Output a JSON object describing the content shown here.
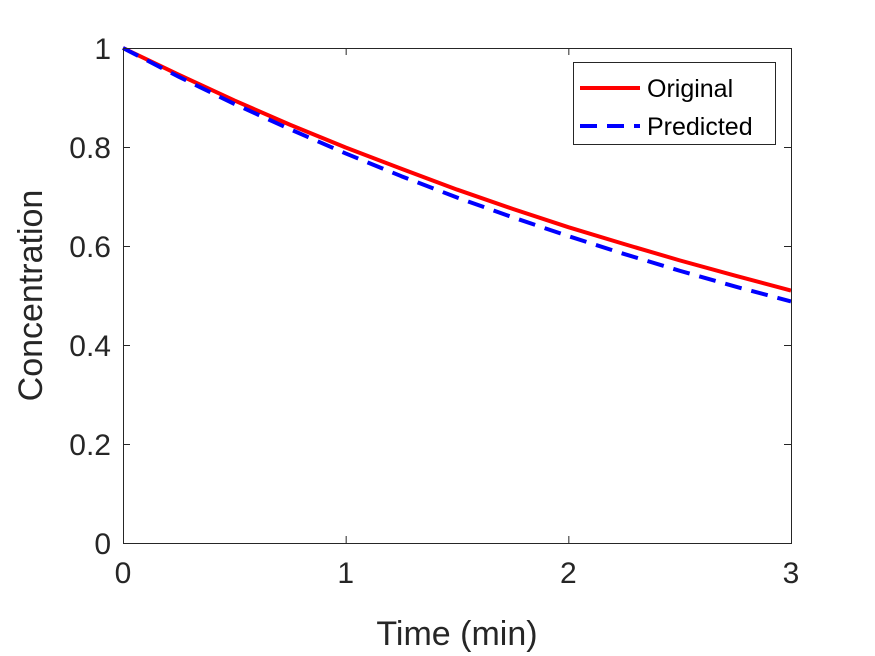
{
  "chart_data": {
    "type": "line",
    "title": "",
    "xlabel": "Time (min)",
    "ylabel": "Concentration",
    "xlim": [
      0,
      3
    ],
    "ylim": [
      0,
      1
    ],
    "xticks": [
      0,
      1,
      2,
      3
    ],
    "xtick_labels": [
      "0",
      "1",
      "2",
      "3"
    ],
    "yticks": [
      0,
      0.2,
      0.4,
      0.6,
      0.8,
      1
    ],
    "ytick_labels": [
      "0",
      "0.2",
      "0.4",
      "0.6",
      "0.8",
      "1"
    ],
    "grid": false,
    "box": true,
    "legend_position": "top-right",
    "x": [
      0,
      0.25,
      0.5,
      0.75,
      1.0,
      1.25,
      1.5,
      1.75,
      2.0,
      2.25,
      2.5,
      2.75,
      3.0
    ],
    "series": [
      {
        "name": "Original",
        "color": "#ff0000",
        "style": "solid",
        "values": [
          1.0,
          0.946,
          0.894,
          0.845,
          0.799,
          0.756,
          0.714,
          0.675,
          0.638,
          0.604,
          0.571,
          0.54,
          0.51
        ]
      },
      {
        "name": "Predicted",
        "color": "#0000ff",
        "style": "dashed",
        "values": [
          1.0,
          0.942,
          0.887,
          0.836,
          0.787,
          0.741,
          0.698,
          0.658,
          0.62,
          0.584,
          0.55,
          0.518,
          0.488
        ]
      }
    ]
  }
}
